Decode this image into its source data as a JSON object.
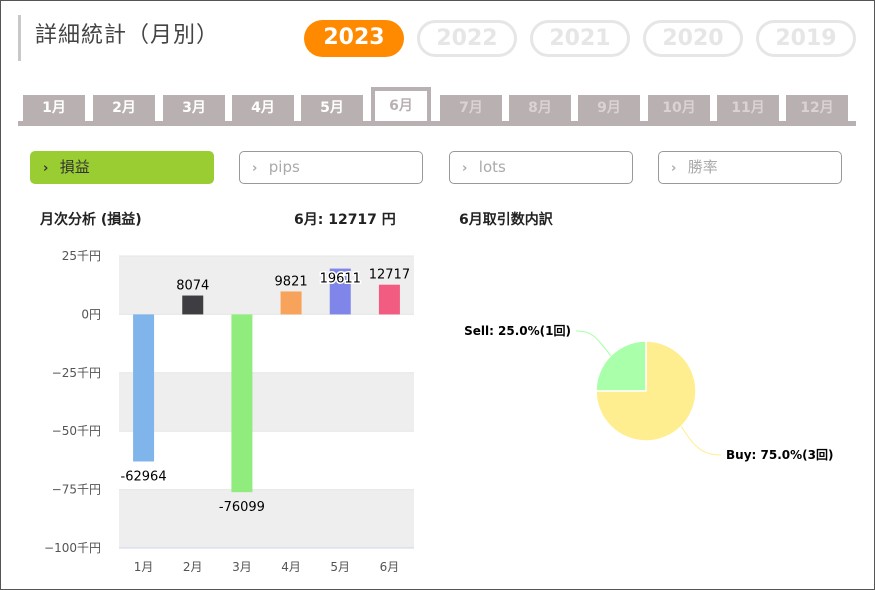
{
  "header": {
    "title": "詳細統計（月別）",
    "years": [
      {
        "label": "2023",
        "active": true
      },
      {
        "label": "2022",
        "active": false
      },
      {
        "label": "2021",
        "active": false
      },
      {
        "label": "2020",
        "active": false
      },
      {
        "label": "2019",
        "active": false
      }
    ]
  },
  "months": [
    {
      "label": "1月",
      "state": "enabled"
    },
    {
      "label": "2月",
      "state": "enabled"
    },
    {
      "label": "3月",
      "state": "enabled"
    },
    {
      "label": "4月",
      "state": "enabled"
    },
    {
      "label": "5月",
      "state": "enabled"
    },
    {
      "label": "6月",
      "state": "active"
    },
    {
      "label": "7月",
      "state": "disabled"
    },
    {
      "label": "8月",
      "state": "disabled"
    },
    {
      "label": "9月",
      "state": "disabled"
    },
    {
      "label": "10月",
      "state": "disabled"
    },
    {
      "label": "11月",
      "state": "disabled"
    },
    {
      "label": "12月",
      "state": "disabled"
    }
  ],
  "metrics": [
    {
      "label": "損益",
      "active": true
    },
    {
      "label": "pips",
      "active": false
    },
    {
      "label": "lots",
      "active": false
    },
    {
      "label": "勝率",
      "active": false
    }
  ],
  "monthly_panel": {
    "heading": "月次分析 (損益)",
    "summary": "6月:  12717 円"
  },
  "breakdown_panel": {
    "heading": "6月取引数内訳"
  },
  "colors": {
    "accent_year": "#ff8a00",
    "metric_active": "#9acd32",
    "tab": "#b9b1b1"
  },
  "chart_data": [
    {
      "type": "bar",
      "categories": [
        "1月",
        "2月",
        "3月",
        "4月",
        "5月",
        "6月"
      ],
      "values": [
        -62964,
        8074,
        -76099,
        9821,
        19611,
        12717
      ],
      "data_labels": [
        "-62964",
        "8074",
        "-76099",
        "9821",
        "19611",
        "12717"
      ],
      "colors": [
        "#7fb5ea",
        "#3e3e42",
        "#90ec7d",
        "#f7a35c",
        "#8085e9",
        "#f15c80"
      ],
      "ylim": [
        -100000,
        25000
      ],
      "yticks": [
        {
          "value": 25000,
          "label": "25千円"
        },
        {
          "value": 0,
          "label": "0円"
        },
        {
          "value": -25000,
          "label": "−25千円"
        },
        {
          "value": -50000,
          "label": "−50千円"
        },
        {
          "value": -75000,
          "label": "−75千円"
        },
        {
          "value": -100000,
          "label": "−100千円"
        }
      ],
      "grid": true
    },
    {
      "type": "pie",
      "slices": [
        {
          "label": "Sell: 25.0%(1回)",
          "value": 25.0,
          "color": "#aaffaa"
        },
        {
          "label": "Buy: 75.0%(3回)",
          "value": 75.0,
          "color": "#ffee8f"
        }
      ]
    }
  ]
}
